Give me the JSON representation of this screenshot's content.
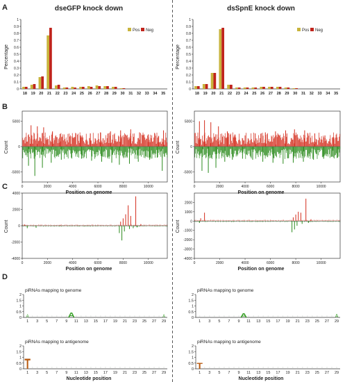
{
  "figure": {
    "colors": {
      "pos": "#c8b43c",
      "neg": "#c0241c",
      "pos_strand": "#d42c1c",
      "neg_strand": "#2a8a1c",
      "axis": "#333333",
      "divider": "#555555"
    },
    "panels": {
      "A": {
        "letter": "A",
        "ylabel": "Percentage",
        "xticks": [
          "18",
          "19",
          "20",
          "21",
          "22",
          "23",
          "24",
          "25",
          "26",
          "27",
          "28",
          "29",
          "30",
          "31",
          "32",
          "33",
          "34",
          "35"
        ],
        "yticks": [
          "0",
          "0.1",
          "0.2",
          "0.3",
          "0.4",
          "0.5",
          "0.6",
          "0.7",
          "0.8",
          "0.9",
          "1"
        ],
        "legend": [
          "Pos",
          "Neg"
        ],
        "left_title": "dseGFP knock down",
        "right_title": "dsSpnE knock down"
      },
      "B": {
        "letter": "B",
        "ylabel": "Count",
        "xlabel": "Position on genome",
        "xticks": [
          "0",
          "2000",
          "4000",
          "6000",
          "8000",
          "10000"
        ],
        "yticks": [
          "5000",
          "0",
          "-5000"
        ]
      },
      "C": {
        "letter": "C",
        "ylabel": "Count",
        "xlabel": "Position on genome",
        "xticks": [
          "0",
          "2000",
          "4000",
          "6000",
          "8000",
          "10000"
        ],
        "left_yticks": [
          "4000",
          "2000",
          "0",
          "-2000",
          "-4000"
        ],
        "right_yticks": [
          "2000",
          "1000",
          "0",
          "-1000",
          "-2000",
          "-3000",
          "-4000"
        ]
      },
      "D": {
        "letter": "D",
        "genome_label": "piRNAs mapping to genome",
        "antigenome_label": "piRNAs mapping to antigenome",
        "xlabel": "Nucleotide position",
        "xticks": [
          "1",
          "3",
          "5",
          "7",
          "9",
          "11",
          "13",
          "15",
          "17",
          "19",
          "21",
          "23",
          "25",
          "27",
          "29"
        ],
        "yticks": [
          "0",
          "0.5",
          "1",
          "1.5",
          "2"
        ],
        "logo_A": "A",
        "logo_T": "T"
      }
    }
  },
  "chart_data": [
    {
      "type": "bar",
      "title": "dseGFP knock down",
      "ylabel": "Percentage",
      "ylim": [
        0,
        1
      ],
      "categories": [
        "18",
        "19",
        "20",
        "21",
        "22",
        "23",
        "24",
        "25",
        "26",
        "27",
        "28",
        "29",
        "30",
        "31",
        "32",
        "33",
        "34",
        "35"
      ],
      "series": [
        {
          "name": "Pos",
          "values": [
            0.03,
            0.06,
            0.17,
            0.77,
            0.05,
            0.02,
            0.03,
            0.03,
            0.04,
            0.05,
            0.04,
            0.03,
            0.01,
            0.0,
            0.0,
            0.0,
            0.0,
            0.0
          ]
        },
        {
          "name": "Neg",
          "values": [
            0.03,
            0.07,
            0.18,
            0.88,
            0.06,
            0.02,
            0.02,
            0.03,
            0.03,
            0.04,
            0.04,
            0.03,
            0.01,
            0.0,
            0.0,
            0.0,
            0.0,
            0.0
          ]
        }
      ]
    },
    {
      "type": "bar",
      "title": "dsSpnE knock down",
      "ylabel": "Percentage",
      "ylim": [
        0,
        1
      ],
      "categories": [
        "18",
        "19",
        "20",
        "21",
        "22",
        "23",
        "24",
        "25",
        "26",
        "27",
        "28",
        "29",
        "30",
        "31",
        "32",
        "33",
        "34",
        "35"
      ],
      "series": [
        {
          "name": "Pos",
          "values": [
            0.04,
            0.07,
            0.23,
            0.86,
            0.06,
            0.02,
            0.02,
            0.02,
            0.03,
            0.03,
            0.03,
            0.02,
            0.01,
            0.0,
            0.0,
            0.0,
            0.0,
            0.0
          ]
        },
        {
          "name": "Neg",
          "values": [
            0.04,
            0.07,
            0.23,
            0.88,
            0.06,
            0.02,
            0.02,
            0.02,
            0.03,
            0.03,
            0.03,
            0.02,
            0.01,
            0.0,
            0.0,
            0.0,
            0.0,
            0.0
          ]
        }
      ]
    },
    {
      "type": "bar",
      "xlabel": "Position on genome",
      "ylabel": "Count",
      "xlim": [
        0,
        11500
      ],
      "ylim": [
        -7000,
        7000
      ],
      "peaks_pos": [
        [
          700,
          4200
        ],
        [
          1200,
          4000
        ],
        [
          1700,
          3800
        ],
        [
          2400,
          3000
        ],
        [
          3000,
          2500
        ],
        [
          3800,
          2000
        ],
        [
          4600,
          2200
        ],
        [
          5400,
          2600
        ],
        [
          6200,
          2800
        ],
        [
          7000,
          3000
        ],
        [
          7800,
          3200
        ],
        [
          8600,
          3400
        ],
        [
          9300,
          2800
        ],
        [
          10000,
          2400
        ],
        [
          10800,
          2000
        ],
        [
          11200,
          3200
        ]
      ],
      "peaks_neg": [
        [
          500,
          -3800
        ],
        [
          1000,
          -5800
        ],
        [
          1600,
          -4200
        ],
        [
          2300,
          -3200
        ],
        [
          3100,
          -2600
        ],
        [
          3900,
          -2200
        ],
        [
          4700,
          -2400
        ],
        [
          5500,
          -2800
        ],
        [
          6300,
          -3000
        ],
        [
          7100,
          -3200
        ],
        [
          7700,
          -3600
        ],
        [
          8500,
          -3400
        ],
        [
          9200,
          -3000
        ],
        [
          10100,
          -2600
        ],
        [
          10700,
          -2200
        ],
        [
          11100,
          -4800
        ]
      ]
    },
    {
      "type": "bar",
      "xlabel": "Position on genome",
      "ylabel": "Count",
      "xlim": [
        0,
        11500
      ],
      "ylim": [
        -7000,
        7000
      ],
      "peaks_pos": [
        [
          400,
          5000
        ],
        [
          800,
          5200
        ],
        [
          1300,
          4800
        ],
        [
          1900,
          4000
        ],
        [
          2600,
          3000
        ],
        [
          3200,
          2400
        ],
        [
          4000,
          2200
        ],
        [
          4800,
          2600
        ],
        [
          5600,
          2800
        ],
        [
          6400,
          3000
        ],
        [
          7200,
          3200
        ],
        [
          7900,
          3400
        ],
        [
          8700,
          3200
        ],
        [
          9500,
          2600
        ],
        [
          10300,
          2200
        ],
        [
          11000,
          1800
        ]
      ],
      "peaks_neg": [
        [
          600,
          -4800
        ],
        [
          1100,
          -5200
        ],
        [
          1700,
          -4200
        ],
        [
          2400,
          -3000
        ],
        [
          3000,
          -2600
        ],
        [
          3800,
          -2400
        ],
        [
          4600,
          -2600
        ],
        [
          5400,
          -3000
        ],
        [
          6200,
          -3200
        ],
        [
          7000,
          -3400
        ],
        [
          7800,
          -3200
        ],
        [
          8600,
          -3000
        ],
        [
          9400,
          -2600
        ],
        [
          10200,
          -2400
        ],
        [
          10900,
          -2000
        ],
        [
          11300,
          -2200
        ]
      ]
    },
    {
      "type": "bar",
      "xlabel": "Position on genome",
      "ylabel": "Count",
      "xlim": [
        0,
        11500
      ],
      "ylim": [
        -4000,
        4000
      ],
      "peaks_pos": [
        [
          7800,
          500
        ],
        [
          8000,
          900
        ],
        [
          8200,
          1400
        ],
        [
          8400,
          2500
        ],
        [
          8600,
          1200
        ],
        [
          9000,
          3600
        ],
        [
          9400,
          200
        ],
        [
          200,
          150
        ],
        [
          3000,
          100
        ]
      ],
      "peaks_neg": [
        [
          7700,
          -900
        ],
        [
          7900,
          -1800
        ],
        [
          8100,
          -700
        ],
        [
          8500,
          -400
        ],
        [
          8800,
          -300
        ],
        [
          9100,
          -200
        ],
        [
          400,
          -300
        ],
        [
          1100,
          -250
        ]
      ]
    },
    {
      "type": "bar",
      "xlabel": "Position on genome",
      "ylabel": "Count",
      "xlim": [
        0,
        11500
      ],
      "ylim": [
        -4000,
        3000
      ],
      "peaks_pos": [
        [
          500,
          300
        ],
        [
          800,
          900
        ],
        [
          7800,
          400
        ],
        [
          8000,
          700
        ],
        [
          8200,
          1000
        ],
        [
          8400,
          900
        ],
        [
          8800,
          2400
        ],
        [
          9200,
          200
        ]
      ],
      "peaks_neg": [
        [
          400,
          -200
        ],
        [
          7700,
          -1200
        ],
        [
          7900,
          -900
        ],
        [
          8100,
          -500
        ],
        [
          8500,
          -300
        ],
        [
          9000,
          -200
        ]
      ]
    }
  ]
}
